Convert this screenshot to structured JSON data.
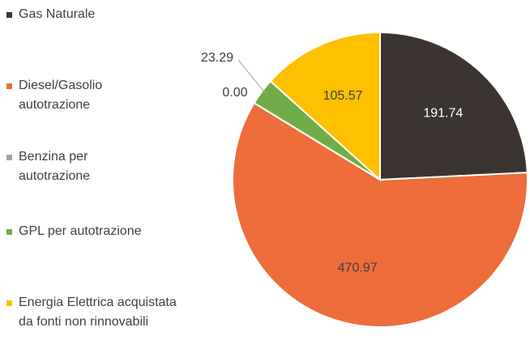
{
  "chart_data": {
    "type": "pie",
    "categories": [
      "Gas Naturale",
      "Diesel/Gasolio autotrazione",
      "Benzina per autotrazione",
      "GPL per autotrazione",
      "Energia Elettrica acquistata da fonti non rinnovabili"
    ],
    "values": [
      191.74,
      470.97,
      0.0,
      23.29,
      105.57
    ],
    "value_labels": [
      "191.74",
      "470.97",
      "0.00",
      "23.29",
      "105.57"
    ],
    "colors": [
      "#3b3431",
      "#ed6d3b",
      "#a5a5a5",
      "#70ad47",
      "#ffc000"
    ],
    "legend": "left"
  }
}
